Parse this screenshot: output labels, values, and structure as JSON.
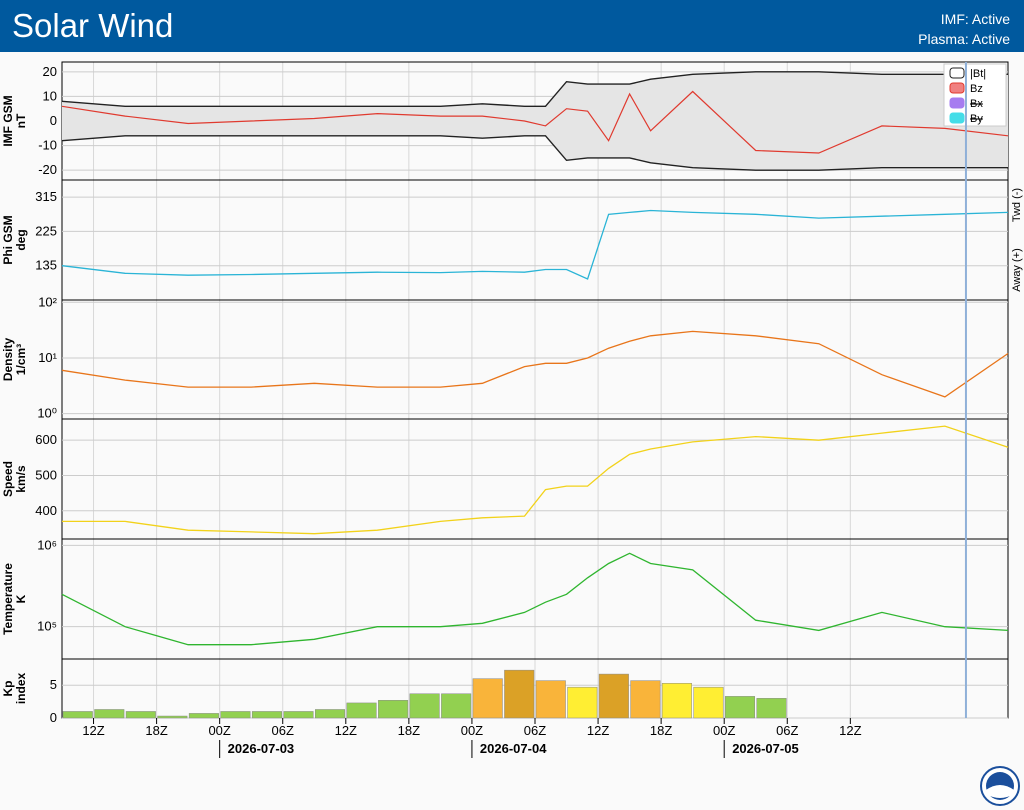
{
  "header": {
    "title": "Solar Wind",
    "status_imf": "IMF: Active",
    "status_plasma": "Plasma: Active"
  },
  "colors": {
    "header_bg": "#00599e",
    "bt": "#222222",
    "bz": "#e03a2f",
    "bx": "#a67cf0",
    "by": "#44dde8",
    "phi": "#2ab4d6",
    "density": "#e8751a",
    "speed": "#f2d21a",
    "temperature": "#2fb52f",
    "kp_green": "#92d050",
    "kp_orange": "#f9b43a",
    "kp_yellow": "#ffee33",
    "kp_dark": "#dba126"
  },
  "icons": {
    "logo": "noaa-logo-icon"
  },
  "chart_data": [
    {
      "type": "line",
      "panel": "imf",
      "ylabel": [
        "IMF GSM",
        "nT"
      ],
      "ylim": [
        -24,
        24
      ],
      "yticks": [
        -20,
        -10,
        0,
        10,
        20
      ],
      "legend": [
        "|Bt|",
        "Bz",
        "Bx",
        "By"
      ],
      "legend_placement": "top-right",
      "x_hours": [
        0,
        6,
        12,
        18,
        24,
        30,
        36,
        40,
        44,
        46,
        48,
        50,
        52,
        54,
        56,
        60,
        66,
        72,
        78,
        84,
        90,
        93,
        96,
        102,
        108,
        112
      ],
      "series": [
        {
          "name": "|Bt|",
          "values": [
            8,
            6,
            6,
            6,
            6,
            6,
            6,
            7,
            6,
            6,
            16,
            15,
            15,
            15,
            17,
            19,
            20,
            20,
            19,
            19,
            19,
            18,
            16,
            11,
            6,
            5
          ]
        },
        {
          "name": "Bz",
          "values": [
            6,
            2,
            -1,
            0,
            1,
            3,
            2,
            2,
            0,
            -2,
            5,
            4,
            -8,
            11,
            -4,
            12,
            -12,
            -13,
            -2,
            -3,
            -6,
            5,
            2,
            2,
            0,
            -4
          ]
        }
      ]
    },
    {
      "type": "line",
      "panel": "phi",
      "ylabel": [
        "Phi GSM",
        "deg"
      ],
      "ylim": [
        45,
        360
      ],
      "yticks": [
        135,
        225,
        315
      ],
      "side_labels": [
        "Twd (-)",
        "Away (+)"
      ],
      "x_hours": [
        0,
        6,
        12,
        18,
        24,
        30,
        36,
        40,
        44,
        46,
        48,
        50,
        52,
        54,
        56,
        60,
        66,
        72,
        78,
        84,
        90,
        93,
        96,
        102,
        108,
        112
      ],
      "values": [
        135,
        115,
        110,
        112,
        115,
        118,
        117,
        120,
        118,
        125,
        125,
        100,
        270,
        275,
        280,
        275,
        270,
        260,
        265,
        270,
        275,
        150,
        100,
        120,
        150,
        160
      ]
    },
    {
      "type": "line",
      "panel": "density",
      "ylabel": [
        "Density",
        "1/cm³"
      ],
      "yscale": "log",
      "ylim": [
        0.8,
        110
      ],
      "yticks": [
        "10⁰",
        "10¹",
        "10²"
      ],
      "x_hours": [
        0,
        6,
        12,
        18,
        24,
        30,
        36,
        40,
        44,
        46,
        48,
        50,
        52,
        54,
        56,
        60,
        66,
        72,
        78,
        84,
        90,
        93,
        96,
        102,
        108,
        112
      ],
      "values": [
        6,
        4,
        3,
        3,
        3.5,
        3,
        3,
        3.5,
        7,
        8,
        8,
        10,
        15,
        20,
        25,
        30,
        25,
        18,
        5,
        2,
        12,
        6,
        1.5,
        4,
        6,
        4
      ]
    },
    {
      "type": "line",
      "panel": "speed",
      "ylabel": [
        "Speed",
        "km/s"
      ],
      "ylim": [
        320,
        660
      ],
      "yticks": [
        400,
        500,
        600
      ],
      "x_hours": [
        0,
        6,
        12,
        18,
        24,
        30,
        36,
        40,
        44,
        46,
        48,
        50,
        52,
        54,
        56,
        60,
        66,
        72,
        78,
        84,
        90,
        93,
        96,
        102,
        108,
        112
      ],
      "values": [
        370,
        370,
        345,
        340,
        335,
        345,
        370,
        380,
        385,
        460,
        470,
        470,
        520,
        560,
        575,
        595,
        610,
        600,
        620,
        640,
        580,
        570,
        570,
        560,
        540,
        505
      ]
    },
    {
      "type": "line",
      "panel": "temperature",
      "ylabel": [
        "Temperature",
        "K"
      ],
      "yscale": "log",
      "ylim": [
        40000,
        1200000
      ],
      "yticks": [
        "10⁵",
        "10⁶"
      ],
      "x_hours": [
        0,
        6,
        12,
        18,
        24,
        30,
        36,
        40,
        44,
        46,
        48,
        50,
        52,
        54,
        56,
        60,
        66,
        72,
        78,
        84,
        90,
        93,
        96,
        102,
        108,
        112
      ],
      "values": [
        250000,
        100000,
        60000,
        60000,
        70000,
        100000,
        100000,
        110000,
        150000,
        200000,
        250000,
        400000,
        600000,
        800000,
        600000,
        500000,
        120000,
        90000,
        150000,
        100000,
        90000,
        100000,
        80000,
        70000,
        60000,
        50000
      ]
    },
    {
      "type": "bar",
      "panel": "kp",
      "ylabel": [
        "Kp",
        "index"
      ],
      "ylim": [
        0,
        9
      ],
      "yticks": [
        0,
        5
      ],
      "start_hour": 0,
      "bin_hours": 3,
      "values": [
        1,
        1.3,
        1,
        0.3,
        0.7,
        1,
        1,
        1,
        1.3,
        2.3,
        2.7,
        3.7,
        3.7,
        6,
        7.3,
        5.7,
        4.7,
        6.7,
        5.7,
        5.3,
        4.7,
        3.3,
        3,
        0
      ],
      "bar_colors": [
        "kp_green",
        "kp_green",
        "kp_green",
        "kp_green",
        "kp_green",
        "kp_green",
        "kp_green",
        "kp_green",
        "kp_green",
        "kp_green",
        "kp_green",
        "kp_green",
        "kp_green",
        "kp_orange",
        "kp_dark",
        "kp_orange",
        "kp_yellow",
        "kp_dark",
        "kp_orange",
        "kp_yellow",
        "kp_yellow",
        "kp_green",
        "kp_green",
        "kp_green"
      ]
    }
  ],
  "time_axis": {
    "ticks": [
      "12Z",
      "18Z",
      "00Z",
      "06Z",
      "12Z",
      "18Z",
      "00Z",
      "06Z",
      "12Z",
      "18Z",
      "00Z",
      "06Z",
      "12Z"
    ],
    "tick_hours": [
      3,
      9,
      15,
      21,
      27,
      33,
      39,
      45,
      51,
      57,
      63,
      69,
      75
    ],
    "dates": [
      "2026-07-03",
      "2026-07-04",
      "2026-07-05"
    ],
    "date_hours": [
      15,
      39,
      63
    ]
  }
}
